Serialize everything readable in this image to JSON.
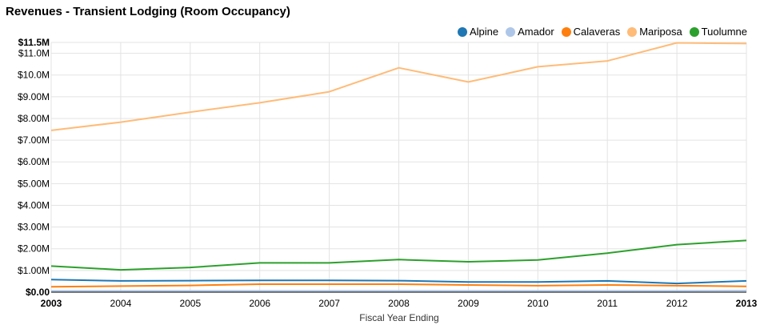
{
  "chart_data": {
    "type": "line",
    "title": "Revenues - Transient Lodging (Room Occupancy)",
    "xlabel": "Fiscal Year Ending",
    "ylabel": "",
    "x": [
      "2003",
      "2004",
      "2005",
      "2006",
      "2007",
      "2008",
      "2009",
      "2010",
      "2011",
      "2012",
      "2013"
    ],
    "ylim": [
      0,
      11.5
    ],
    "y_tick_values": [
      0,
      1,
      2,
      3,
      4,
      5,
      6,
      7,
      8,
      9,
      10,
      11,
      11.5
    ],
    "y_tick_labels": [
      "$0.00",
      "$1.00M",
      "$2.00M",
      "$3.00M",
      "$4.00M",
      "$5.00M",
      "$6.00M",
      "$7.00M",
      "$8.00M",
      "$9.00M",
      "$10.0M",
      "$11.0M",
      "$11.5M"
    ],
    "y_bold_ticks": [
      "$0.00",
      "$11.5M"
    ],
    "x_bold_ticks": [
      "2003",
      "2013"
    ],
    "grid": true,
    "legend_position": "top-right",
    "series": [
      {
        "name": "Alpine",
        "color": "#1f77b4",
        "values": [
          0.58,
          0.52,
          0.53,
          0.54,
          0.54,
          0.53,
          0.47,
          0.47,
          0.52,
          0.4,
          0.52
        ]
      },
      {
        "name": "Amador",
        "color": "#aec7e8",
        "values": [
          0.06,
          0.06,
          0.06,
          0.06,
          0.06,
          0.06,
          0.06,
          0.06,
          0.06,
          0.06,
          0.07
        ]
      },
      {
        "name": "Calaveras",
        "color": "#ff7f0e",
        "values": [
          0.25,
          0.28,
          0.31,
          0.37,
          0.37,
          0.37,
          0.33,
          0.3,
          0.33,
          0.3,
          0.27
        ]
      },
      {
        "name": "Mariposa",
        "color": "#ffbb78",
        "values": [
          7.45,
          7.83,
          8.29,
          8.72,
          9.23,
          10.33,
          9.68,
          10.38,
          10.65,
          11.48,
          11.45
        ]
      },
      {
        "name": "Tuolumne",
        "color": "#2ca02c",
        "values": [
          1.2,
          1.03,
          1.14,
          1.35,
          1.35,
          1.5,
          1.4,
          1.48,
          1.8,
          2.19,
          2.38
        ]
      }
    ]
  }
}
